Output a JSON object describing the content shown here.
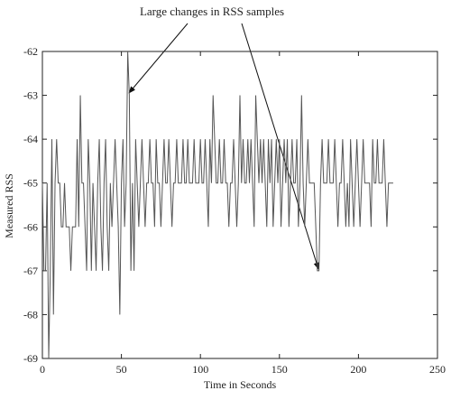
{
  "chart_data": {
    "type": "line",
    "annotation": "Large changes in RSS samples",
    "xlabel": "Time in Seconds",
    "ylabel": "Measured RSS",
    "xlim": [
      0,
      250
    ],
    "ylim": [
      -69,
      -62
    ],
    "xticks": [
      0,
      50,
      100,
      150,
      200,
      250
    ],
    "yticks": [
      -69,
      -68,
      -67,
      -66,
      -65,
      -64,
      -63,
      -62
    ],
    "grid": false,
    "series": [
      {
        "color": "#555555",
        "x": [
          0,
          1,
          2,
          3,
          4,
          5,
          6,
          7,
          8,
          9,
          10,
          11,
          12,
          13,
          14,
          15,
          16,
          17,
          18,
          19,
          20,
          21,
          22,
          23,
          24,
          25,
          26,
          27,
          28,
          29,
          30,
          31,
          32,
          33,
          34,
          35,
          36,
          37,
          38,
          39,
          40,
          41,
          42,
          43,
          44,
          45,
          46,
          47,
          48,
          49,
          50,
          51,
          52,
          53,
          54,
          55,
          56,
          57,
          58,
          59,
          60,
          61,
          62,
          63,
          64,
          65,
          66,
          67,
          68,
          69,
          70,
          71,
          72,
          73,
          74,
          75,
          76,
          77,
          78,
          79,
          80,
          81,
          82,
          83,
          84,
          85,
          86,
          87,
          88,
          89,
          90,
          91,
          92,
          93,
          94,
          95,
          96,
          97,
          98,
          99,
          100,
          101,
          102,
          103,
          104,
          105,
          106,
          107,
          108,
          109,
          110,
          111,
          112,
          113,
          114,
          115,
          116,
          117,
          118,
          119,
          120,
          121,
          122,
          123,
          124,
          125,
          126,
          127,
          128,
          129,
          130,
          131,
          132,
          133,
          134,
          135,
          136,
          137,
          138,
          139,
          140,
          141,
          142,
          143,
          144,
          145,
          146,
          147,
          148,
          149,
          150,
          151,
          152,
          153,
          154,
          155,
          156,
          157,
          158,
          159,
          160,
          161,
          162,
          163,
          164,
          165,
          166,
          167,
          168,
          169,
          170,
          171,
          172,
          173,
          174,
          175,
          176,
          177,
          178,
          179,
          180,
          181,
          182,
          183,
          184,
          185,
          186,
          187,
          188,
          189,
          190,
          191,
          192,
          193,
          194,
          195,
          196,
          197,
          198,
          199,
          200,
          201,
          202,
          203,
          204,
          205,
          206,
          207,
          208,
          209,
          210,
          211,
          212,
          213,
          214,
          215,
          216,
          217,
          218,
          219,
          220,
          221,
          222
        ],
        "values": [
          -65,
          -67,
          -67,
          -65,
          -69,
          -67,
          -64,
          -68,
          -65,
          -64,
          -65,
          -65,
          -66,
          -66,
          -65,
          -66,
          -66,
          -66,
          -67,
          -66,
          -66,
          -66,
          -64,
          -66,
          -63,
          -65,
          -65,
          -66,
          -67,
          -64,
          -65,
          -67,
          -65,
          -66,
          -67,
          -65,
          -64,
          -66,
          -67,
          -65,
          -64,
          -66,
          -67,
          -65,
          -66,
          -65,
          -64,
          -65,
          -66,
          -68,
          -65,
          -64,
          -66,
          -65,
          -62,
          -63,
          -67,
          -65,
          -67,
          -64,
          -65,
          -66,
          -65,
          -64,
          -65,
          -66,
          -65,
          -65,
          -64,
          -65,
          -65,
          -66,
          -64,
          -65,
          -65,
          -66,
          -65,
          -64,
          -65,
          -65,
          -64,
          -65,
          -66,
          -65,
          -65,
          -64,
          -65,
          -65,
          -65,
          -64,
          -65,
          -65,
          -64,
          -65,
          -65,
          -65,
          -64,
          -65,
          -65,
          -65,
          -64,
          -65,
          -65,
          -64,
          -65,
          -66,
          -64,
          -65,
          -63,
          -64,
          -65,
          -65,
          -64,
          -65,
          -65,
          -64,
          -65,
          -65,
          -66,
          -65,
          -65,
          -64,
          -65,
          -66,
          -65,
          -63,
          -65,
          -64,
          -65,
          -65,
          -64,
          -65,
          -64,
          -65,
          -66,
          -63,
          -64,
          -65,
          -64,
          -65,
          -64,
          -65,
          -66,
          -64,
          -65,
          -64,
          -66,
          -65,
          -64,
          -65,
          -64,
          -66,
          -65,
          -64,
          -65,
          -64,
          -66,
          -65,
          -64,
          -65,
          -65,
          -64,
          -66,
          -65,
          -63,
          -65,
          -66,
          -65,
          -64,
          -65,
          -65,
          -65,
          -65,
          -66,
          -67,
          -67,
          -65,
          -64,
          -65,
          -65,
          -65,
          -64,
          -65,
          -65,
          -65,
          -64,
          -65,
          -66,
          -65,
          -65,
          -64,
          -65,
          -66,
          -65,
          -66,
          -64,
          -65,
          -66,
          -65,
          -64,
          -65,
          -66,
          -65,
          -64,
          -65,
          -65,
          -65,
          -65,
          -66,
          -64,
          -65,
          -65,
          -64,
          -65,
          -65,
          -65,
          -64,
          -65,
          -66,
          -65,
          -65,
          -65,
          -65
        ]
      }
    ]
  }
}
